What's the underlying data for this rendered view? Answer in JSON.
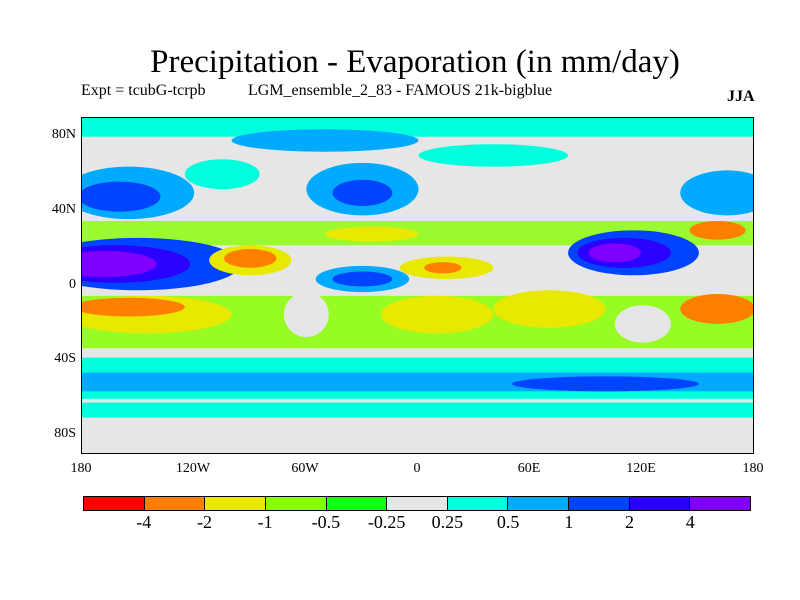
{
  "title": "Precipitation - Evaporation (in mm/day)",
  "subtitle_left": "Expt = tcubG-tcrpb",
  "subtitle_mid": "LGM_ensemble_2_83 - FAMOUS 21k-bigblue",
  "season": "JJA",
  "lat_ticks": [
    "80N",
    "40N",
    "0",
    "40S",
    "80S"
  ],
  "lon_ticks": [
    "180",
    "120W",
    "60W",
    "0",
    "60E",
    "120E",
    "180"
  ],
  "colorbar": {
    "colors": [
      "#ff0000",
      "#ff8000",
      "#e8e800",
      "#88ff00",
      "#16ff16",
      "#e6e6e6",
      "#00ffdd",
      "#00aaff",
      "#0044ff",
      "#2a00ff",
      "#8000ff"
    ],
    "labels": [
      "-4",
      "-2",
      "-1",
      "-0.5",
      "-0.25",
      "0.25",
      "0.5",
      "1",
      "2",
      "4"
    ]
  }
}
